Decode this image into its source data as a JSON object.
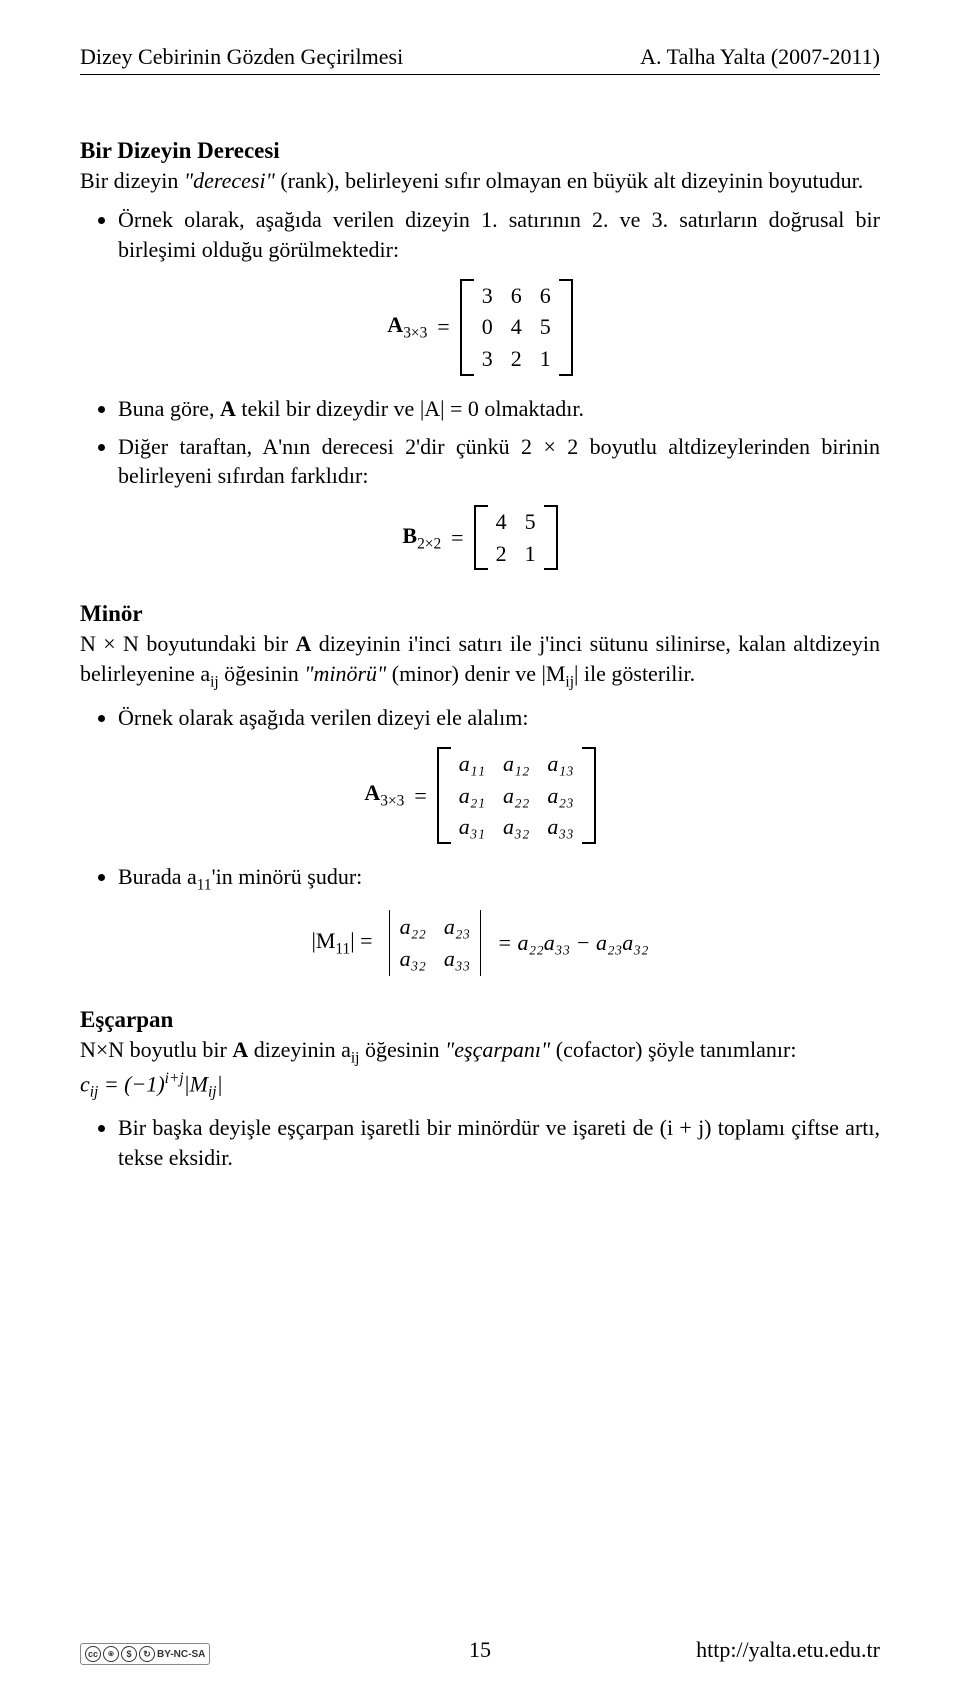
{
  "header": {
    "left": "Dizey Cebirinin Gözden Geçirilmesi",
    "right": "A. Talha Yalta (2007-2011)"
  },
  "rank": {
    "title": "Bir Dizeyin Derecesi",
    "intro_1": "Bir dizeyin ",
    "intro_em1": "\"derecesi\"",
    "intro_2": " (rank), belirleyeni sıfır olmayan en büyük alt dizeyinin boyutudur.",
    "b1": "Örnek olarak, aşağıda verilen dizeyin 1. satırının 2. ve 3. satırların doğrusal bir birleşimi olduğu görülmektedir:",
    "A_label": "A",
    "A_sub": "3×3",
    "eq": " = ",
    "A_rows": [
      [
        "3",
        "6",
        "6"
      ],
      [
        "0",
        "4",
        "5"
      ],
      [
        "3",
        "2",
        "1"
      ]
    ],
    "b2_1": "Buna göre, ",
    "b2_2": " tekil bir dizeydir ve ",
    "b2_3": " olmaktadır.",
    "detA": "|A| = 0",
    "b3": "Diğer taraftan, A'nın derecesi 2'dir çünkü 2 × 2 boyutlu altdizeylerinden birinin belirleyeni sıfırdan farklıdır:",
    "B_label": "B",
    "B_sub": "2×2",
    "B_rows": [
      [
        "4",
        "5"
      ],
      [
        "2",
        "1"
      ]
    ]
  },
  "minor": {
    "title": "Minör",
    "intro_1": "N × N boyutundaki bir ",
    "intro_2": " dizeyinin i'inci satırı ile j'inci sütunu silinirse, kalan altdizeyin belirleyenine a",
    "intro_sub": "ij",
    "intro_3": " öğesinin ",
    "intro_em": "\"minörü\"",
    "intro_4": " (minor) denir ve |M",
    "intro_sub2": "ij",
    "intro_5": "| ile gösterilir.",
    "b1": "Örnek olarak aşağıda verilen dizeyi ele alalım:",
    "A_label": "A",
    "A_sub": "3×3",
    "eq": " = ",
    "A_rows": [
      [
        "a₁₁",
        "a₁₂",
        "a₁₃"
      ],
      [
        "a₂₁",
        "a₂₂",
        "a₂₃"
      ],
      [
        "a₃₁",
        "a₃₂",
        "a₃₃"
      ]
    ],
    "b2_1": "Burada a",
    "b2_sub": "11",
    "b2_2": "'in minörü şudur:",
    "M_label": "|M",
    "M_sub": "11",
    "M_close": "| = ",
    "M_rows": [
      [
        "a₂₂",
        "a₂₃"
      ],
      [
        "a₃₂",
        "a₃₃"
      ]
    ],
    "M_result": " = a₂₂a₃₃ − a₂₃a₃₂"
  },
  "cofactor": {
    "title": "Eşçarpan",
    "intro_1": "N×N boyutlu bir ",
    "intro_2": " dizeyinin a",
    "intro_sub": "ij",
    "intro_3": " öğesinin ",
    "intro_em": "\"eşçarpanı\"",
    "intro_4": " (cofactor) şöyle tanımlanır:",
    "formula_1": "c",
    "formula_sub1": "ij",
    "formula_2": " = (−1)",
    "formula_sup": "i+j",
    "formula_3": "|M",
    "formula_sub2": "ij",
    "formula_4": "|",
    "b1": "Bir başka deyişle eşçarpan işaretli bir minördür ve işareti de (i + j) toplamı çiftse artı, tekse eksidir."
  },
  "footer": {
    "cc": "BY-NC-SA",
    "page": "15",
    "url": "http://yalta.etu.edu.tr"
  }
}
